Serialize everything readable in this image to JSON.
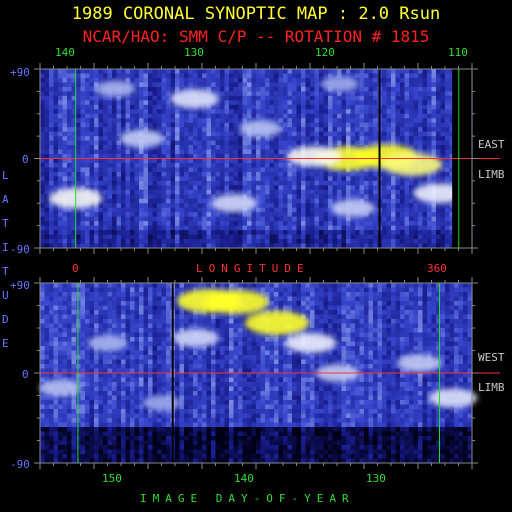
{
  "header": {
    "title": "1989 CORONAL SYNOPTIC MAP : 2.0 Rsun",
    "subtitle": "NCAR/HAO: SMM C/P -- ROTATION # 1815"
  },
  "axis": {
    "lat_letters": [
      "L",
      "A",
      "T",
      "I",
      "T",
      "U",
      "D",
      "E"
    ],
    "longitude_label": "LONGITUDE",
    "longitude_ticks": [
      "0",
      "360"
    ],
    "doy_label": "IMAGE DAY-OF-YEAR"
  },
  "colors": {
    "background": "#000000",
    "title": "#ffff33",
    "subtitle": "#ff2222",
    "equator_line": "#ff3030",
    "marker_line": "#22dd22",
    "frame": "#888888",
    "intensity_low": "#000010",
    "intensity_mid": "#2b37c9",
    "intensity_high": "#ffffff",
    "intensity_peak": "#ffff00"
  },
  "chart_data": [
    {
      "type": "heatmap",
      "panel": "east limb",
      "top_ticks": [
        "140",
        "130",
        "120",
        "110"
      ],
      "lat_ticks": [
        "+90",
        "0",
        "-90"
      ],
      "side_label": [
        "EAST",
        "LIMB"
      ],
      "ylim": [
        -90,
        90
      ],
      "xlim": [
        142.7,
        110
      ],
      "equator_latitude": 0,
      "green_marker_longitudes": [
        140.0,
        111.0
      ],
      "black_marker_longitude": 117.0,
      "data_edge_longitude": 111.5,
      "features": [
        {
          "x": 116.5,
          "lat": 2,
          "intensity": 1.0
        },
        {
          "x": 119.5,
          "lat": 0,
          "intensity": 1.0
        },
        {
          "x": 114.5,
          "lat": -6,
          "intensity": 0.9
        },
        {
          "x": 122.0,
          "lat": 2,
          "intensity": 0.75
        },
        {
          "x": 131.0,
          "lat": 60,
          "intensity": 0.65
        },
        {
          "x": 135.0,
          "lat": 20,
          "intensity": 0.55
        },
        {
          "x": 126.0,
          "lat": 30,
          "intensity": 0.5
        },
        {
          "x": 140.0,
          "lat": -40,
          "intensity": 0.75
        },
        {
          "x": 128.0,
          "lat": -45,
          "intensity": 0.6
        },
        {
          "x": 119.0,
          "lat": -50,
          "intensity": 0.55
        },
        {
          "x": 112.5,
          "lat": -35,
          "intensity": 0.7
        },
        {
          "x": 137.0,
          "lat": 70,
          "intensity": 0.45
        },
        {
          "x": 120.0,
          "lat": 75,
          "intensity": 0.4
        }
      ]
    },
    {
      "type": "heatmap",
      "panel": "west limb",
      "bottom_ticks": [
        "150",
        "140",
        "130"
      ],
      "lat_ticks": [
        "+90",
        "0",
        "-90"
      ],
      "side_label": [
        "WEST",
        "LIMB"
      ],
      "ylim": [
        -90,
        90
      ],
      "xlim": [
        155,
        123.1
      ],
      "equator_latitude": 0,
      "green_marker_doys": [
        152.2,
        125.5
      ],
      "black_marker_doy": 145.2,
      "features": [
        {
          "x": 140.5,
          "lat": 71,
          "intensity": 1.0
        },
        {
          "x": 142.5,
          "lat": 72,
          "intensity": 1.0
        },
        {
          "x": 137.5,
          "lat": 50,
          "intensity": 1.0
        },
        {
          "x": 135.0,
          "lat": 30,
          "intensity": 0.7
        },
        {
          "x": 133.0,
          "lat": 0,
          "intensity": 0.55
        },
        {
          "x": 143.5,
          "lat": 35,
          "intensity": 0.6
        },
        {
          "x": 150.0,
          "lat": 30,
          "intensity": 0.45
        },
        {
          "x": 153.5,
          "lat": -15,
          "intensity": 0.5
        },
        {
          "x": 127.0,
          "lat": 10,
          "intensity": 0.55
        },
        {
          "x": 124.5,
          "lat": -25,
          "intensity": 0.65
        },
        {
          "x": 146.0,
          "lat": -30,
          "intensity": 0.4
        }
      ]
    }
  ]
}
